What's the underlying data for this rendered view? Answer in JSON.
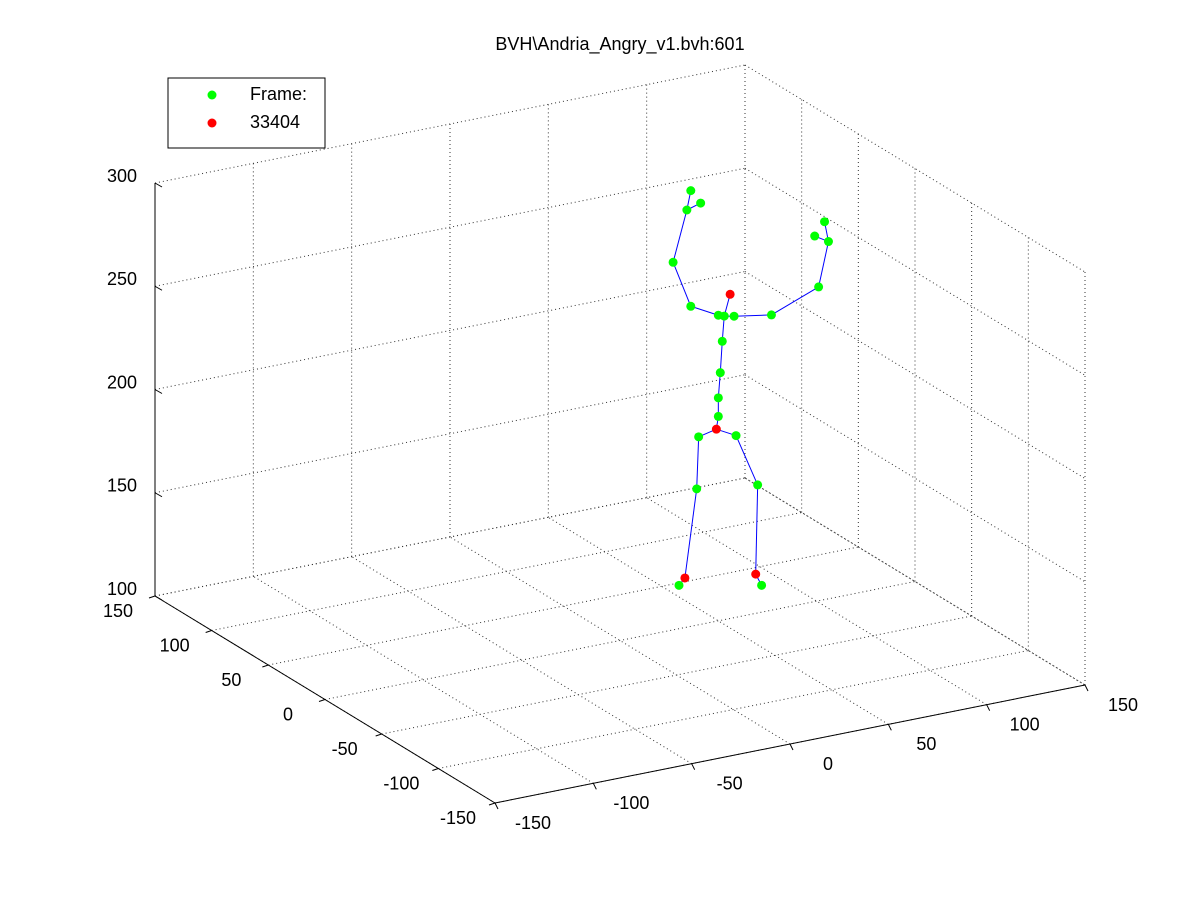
{
  "chart_data": {
    "type": "scatter3d",
    "title": "BVH\\Andria_Angry_v1.bvh:601",
    "xlim": [
      -150,
      150
    ],
    "xticks": [
      -150,
      -100,
      -50,
      0,
      50,
      100,
      150
    ],
    "ylim": [
      -150,
      150
    ],
    "yticks": [
      -150,
      -100,
      -50,
      0,
      50,
      100,
      150
    ],
    "zlim": [
      100,
      300
    ],
    "zticks": [
      100,
      150,
      200,
      250,
      300
    ],
    "grid": true,
    "legend": "upper left",
    "line_color": "#0000ff",
    "series": [
      {
        "name": "Frame:",
        "color": "#00ff00",
        "x": [
          30,
          39,
          40,
          59,
          70,
          72,
          50,
          50,
          51,
          52,
          53,
          50,
          58,
          36,
          27,
          34,
          36,
          41,
          77,
          101,
          106,
          104,
          99
        ],
        "y": [
          0,
          0,
          0,
          0,
          0,
          0,
          0,
          0,
          0,
          0,
          0,
          0,
          0,
          0,
          0,
          0,
          0,
          0,
          0,
          0,
          0,
          0,
          0
        ],
        "z": [
          121,
          166,
          191,
          188,
          162,
          113,
          199,
          208,
          220,
          235,
          247,
          248,
          246,
          255,
          278,
          302,
          311,
          304,
          243,
          252,
          273,
          283,
          277
        ]
      },
      {
        "name": "33404",
        "color": "#ff0000",
        "x": [
          33,
          49,
          69,
          56
        ],
        "y": [
          0,
          0,
          0,
          0
        ],
        "z": [
          124,
          193,
          119,
          257
        ]
      }
    ]
  }
}
